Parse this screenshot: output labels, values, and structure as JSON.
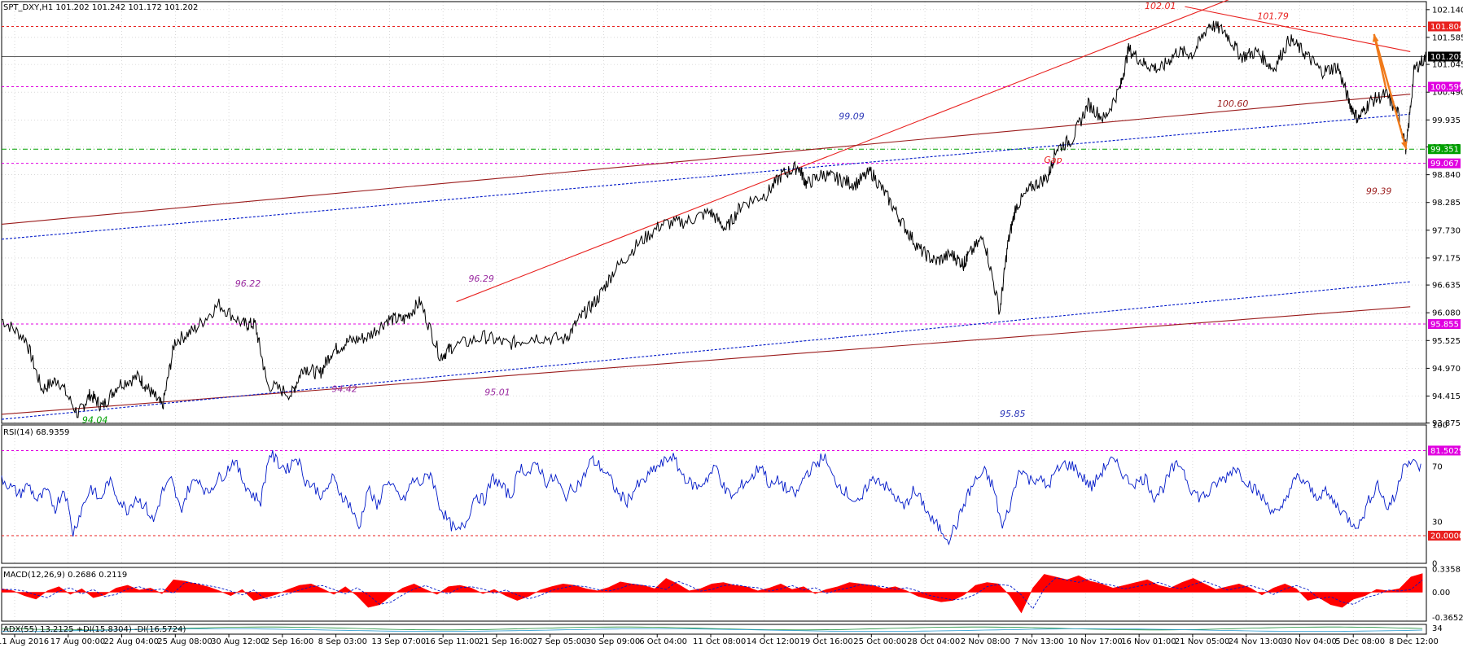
{
  "colors": {
    "price": "#000000",
    "trend_red": "#e8211f",
    "trend_darkred": "#9b1c1c",
    "trend_blue": "#0018c8",
    "level_red": "#e8211f",
    "level_magenta": "#e000e0",
    "level_green": "#00a000",
    "rsi_line": "#0018c8",
    "macd_hist": "#ff0000",
    "macd_signal": "#0018c8",
    "arrow": "#f07a1a",
    "grid": "#c0c0c0",
    "annotation_purple": "#9a2aa0",
    "annotation_red": "#e8211f",
    "annotation_blue": "#2b36b8"
  },
  "chart_data": {
    "type": "line",
    "symbol": "SPT_DXY,H1",
    "ohlc_header": "SPT_DXY,H1  101.202 101.242 101.172 101.202",
    "main_panel": {
      "ylim": [
        93.87,
        102.3
      ],
      "y_ticks": [
        "102.140",
        "101.585",
        "101.045",
        "100.490",
        "99.935",
        "99.395",
        "98.840",
        "98.285",
        "97.730",
        "97.175",
        "96.635",
        "96.080",
        "95.525",
        "94.970",
        "94.415",
        "93.875"
      ],
      "price_points": [
        [
          0,
          95.95
        ],
        [
          0.03,
          95.55
        ],
        [
          0.05,
          94.55
        ],
        [
          0.07,
          94.75
        ],
        [
          0.095,
          94.05
        ],
        [
          0.11,
          94.45
        ],
        [
          0.125,
          94.2
        ],
        [
          0.145,
          94.65
        ],
        [
          0.17,
          94.8
        ],
        [
          0.185,
          94.5
        ],
        [
          0.2,
          94.2
        ],
        [
          0.215,
          95.5
        ],
        [
          0.24,
          95.75
        ],
        [
          0.27,
          96.25
        ],
        [
          0.3,
          95.85
        ],
        [
          0.315,
          95.85
        ],
        [
          0.33,
          94.65
        ],
        [
          0.36,
          94.45
        ],
        [
          0.375,
          95.0
        ],
        [
          0.395,
          94.85
        ],
        [
          0.41,
          95.3
        ],
        [
          0.43,
          95.5
        ],
        [
          0.455,
          95.6
        ],
        [
          0.48,
          95.95
        ],
        [
          0.5,
          95.95
        ],
        [
          0.52,
          96.3
        ],
        [
          0.545,
          95.2
        ],
        [
          0.56,
          95.4
        ],
        [
          0.6,
          95.6
        ],
        [
          0.63,
          95.45
        ],
        [
          0.66,
          95.6
        ],
        [
          0.7,
          95.55
        ],
        [
          0.72,
          96.0
        ],
        [
          0.74,
          96.35
        ],
        [
          0.76,
          96.9
        ],
        [
          0.79,
          97.45
        ],
        [
          0.82,
          97.85
        ],
        [
          0.85,
          97.9
        ],
        [
          0.88,
          98.1
        ],
        [
          0.9,
          97.75
        ],
        [
          0.92,
          98.25
        ],
        [
          0.95,
          98.45
        ],
        [
          0.97,
          98.85
        ],
        [
          0.99,
          99.0
        ],
        [
          1.0,
          98.65
        ],
        [
          1.02,
          98.85
        ],
        [
          1.04,
          98.75
        ],
        [
          1.06,
          98.65
        ],
        [
          1.08,
          98.9
        ],
        [
          1.1,
          98.4
        ],
        [
          1.12,
          97.85
        ],
        [
          1.14,
          97.35
        ],
        [
          1.16,
          97.1
        ],
        [
          1.18,
          97.25
        ],
        [
          1.195,
          97.05
        ],
        [
          1.2,
          97.2
        ],
        [
          1.22,
          97.6
        ],
        [
          1.24,
          96.1
        ],
        [
          1.25,
          97.45
        ],
        [
          1.26,
          98.2
        ],
        [
          1.28,
          98.6
        ],
        [
          1.3,
          98.8
        ],
        [
          1.31,
          99.35
        ],
        [
          1.33,
          99.55
        ],
        [
          1.35,
          100.25
        ],
        [
          1.37,
          99.95
        ],
        [
          1.39,
          100.6
        ],
        [
          1.4,
          101.35
        ],
        [
          1.42,
          101.05
        ],
        [
          1.44,
          100.95
        ],
        [
          1.46,
          101.3
        ],
        [
          1.48,
          101.25
        ],
        [
          1.5,
          101.85
        ],
        [
          1.52,
          101.7
        ],
        [
          1.54,
          101.2
        ],
        [
          1.56,
          101.3
        ],
        [
          1.58,
          100.95
        ],
        [
          1.6,
          101.55
        ],
        [
          1.62,
          101.25
        ],
        [
          1.64,
          100.9
        ],
        [
          1.66,
          101.0
        ],
        [
          1.675,
          100.25
        ],
        [
          1.685,
          99.95
        ],
        [
          1.7,
          100.3
        ],
        [
          1.72,
          100.45
        ],
        [
          1.735,
          100.05
        ],
        [
          1.745,
          99.35
        ],
        [
          1.755,
          100.95
        ],
        [
          1.77,
          101.2
        ]
      ],
      "horizontal_levels": [
        {
          "value": 101.804,
          "label": "101.804",
          "color": "level_red",
          "style": "dashed"
        },
        {
          "value": 101.202,
          "label": "101.202",
          "color": "price",
          "style": "solid"
        },
        {
          "value": 100.599,
          "label": "100.599",
          "color": "level_magenta",
          "style": "dashed"
        },
        {
          "value": 99.351,
          "label": "99.351",
          "color": "level_green",
          "style": "dashdot"
        },
        {
          "value": 99.067,
          "label": "99.067",
          "color": "level_magenta",
          "style": "dashed"
        },
        {
          "value": 95.855,
          "label": "95.855",
          "color": "level_magenta",
          "style": "dashed"
        }
      ],
      "annotations": [
        {
          "text": "102.01",
          "x": 1.42,
          "y": 102.15,
          "color": "annotation_red",
          "italic": false
        },
        {
          "text": "101.79",
          "x": 1.56,
          "y": 101.95,
          "color": "annotation_red",
          "italic": false
        },
        {
          "text": "100.60",
          "x": 1.51,
          "y": 100.2,
          "color": "trend_darkred",
          "italic": false
        },
        {
          "text": "99.09",
          "x": 1.04,
          "y": 99.95,
          "color": "annotation_blue",
          "italic": false
        },
        {
          "text": "Gap",
          "x": 1.295,
          "y": 99.08,
          "color": "annotation_red",
          "italic": true
        },
        {
          "text": "99.39",
          "x": 1.695,
          "y": 98.45,
          "color": "trend_darkred",
          "italic": false
        },
        {
          "text": "96.22",
          "x": 0.29,
          "y": 96.6,
          "color": "annotation_purple",
          "italic": true
        },
        {
          "text": "96.29",
          "x": 0.58,
          "y": 96.7,
          "color": "annotation_purple",
          "italic": true
        },
        {
          "text": "94.42",
          "x": 0.41,
          "y": 94.5,
          "color": "annotation_purple",
          "italic": true
        },
        {
          "text": "95.01",
          "x": 0.6,
          "y": 94.43,
          "color": "annotation_purple",
          "italic": true
        },
        {
          "text": "94.04",
          "x": 0.1,
          "y": 93.88,
          "color": "level_green",
          "italic": true
        },
        {
          "text": "95.85",
          "x": 1.24,
          "y": 94.0,
          "color": "annotation_blue",
          "italic": false
        }
      ],
      "trend_lines": [
        {
          "from": [
            0.565,
            96.3
          ],
          "to": [
            1.55,
            102.5
          ],
          "color": "trend_red",
          "style": "solid"
        },
        {
          "from": [
            1.47,
            102.2
          ],
          "to": [
            1.75,
            101.3
          ],
          "color": "trend_red",
          "style": "solid"
        },
        {
          "from": [
            0.0,
            97.85
          ],
          "to": [
            1.75,
            100.45
          ],
          "color": "trend_darkred",
          "style": "solid"
        },
        {
          "from": [
            0.0,
            94.05
          ],
          "to": [
            1.75,
            96.2
          ],
          "color": "trend_darkred",
          "style": "solid"
        },
        {
          "from": [
            0.0,
            97.55
          ],
          "to": [
            1.75,
            100.05
          ],
          "color": "trend_blue",
          "style": "dashed"
        },
        {
          "from": [
            0.0,
            93.95
          ],
          "to": [
            1.75,
            96.7
          ],
          "color": "trend_blue",
          "style": "dashed"
        }
      ],
      "arrows": [
        {
          "points": [
            [
              1.72,
              100.55
            ],
            [
              1.705,
              101.65
            ],
            [
              1.745,
              99.35
            ]
          ],
          "color": "arrow"
        }
      ]
    },
    "rsi_panel": {
      "label": "RSI(14) 68.9359",
      "ylim": [
        0,
        100
      ],
      "y_ticks": [
        "100",
        "70",
        "30",
        "0"
      ],
      "levels": [
        {
          "value": 81.5029,
          "label": "81.5029",
          "color": "level_magenta"
        },
        {
          "value": 20.0,
          "label": "20.0000",
          "color": "level_red"
        }
      ],
      "values": [
        62,
        55,
        50,
        57,
        45,
        52,
        40,
        55,
        22,
        40,
        55,
        45,
        60,
        48,
        38,
        48,
        42,
        30,
        52,
        60,
        38,
        55,
        62,
        50,
        60,
        65,
        75,
        60,
        50,
        45,
        80,
        72,
        68,
        78,
        60,
        55,
        48,
        62,
        50,
        42,
        25,
        55,
        40,
        60,
        52,
        45,
        60,
        58,
        66,
        42,
        30,
        22,
        30,
        50,
        45,
        62,
        55,
        48,
        70,
        65,
        72,
        58,
        62,
        48,
        55,
        60,
        75,
        70,
        62,
        50,
        45,
        55,
        60,
        68,
        72,
        78,
        66,
        58,
        55,
        62,
        70,
        52,
        48,
        58,
        62,
        72,
        55,
        60,
        52,
        50,
        65,
        70,
        78,
        62,
        55,
        48,
        42,
        58,
        62,
        55,
        48,
        40,
        52,
        45,
        32,
        25,
        18,
        30,
        48,
        60,
        66,
        55,
        25,
        45,
        70,
        60,
        62,
        55,
        66,
        72,
        70,
        62,
        55,
        65,
        75,
        70,
        60,
        58,
        62,
        48,
        55,
        68,
        72,
        55,
        48,
        50,
        58,
        62,
        70,
        62,
        55,
        48,
        40,
        35,
        52,
        62,
        58,
        48,
        52,
        45,
        38,
        30,
        28,
        45,
        58,
        40,
        48,
        75,
        72,
        69
      ]
    },
    "macd_panel": {
      "label": "MACD(12,26,9) 0.2686 0.2119",
      "ylim": [
        -0.42,
        0.36
      ],
      "y_ticks": [
        "0.3358",
        "0.00",
        "-0.3652"
      ],
      "histogram": [
        0.05,
        0.02,
        -0.05,
        -0.1,
        0.02,
        0.08,
        -0.03,
        0.05,
        -0.08,
        -0.04,
        0.06,
        0.1,
        0.03,
        0.06,
        -0.02,
        0.18,
        0.16,
        0.12,
        0.08,
        0.02,
        -0.05,
        0.04,
        -0.12,
        -0.08,
        -0.03,
        0.04,
        0.1,
        0.12,
        0.05,
        -0.03,
        0.08,
        -0.05,
        -0.22,
        -0.18,
        -0.05,
        0.06,
        0.12,
        0.04,
        -0.03,
        0.08,
        0.1,
        0.06,
        -0.02,
        0.04,
        -0.05,
        -0.12,
        -0.06,
        0.03,
        0.08,
        0.12,
        0.1,
        0.05,
        0.02,
        0.07,
        0.15,
        0.12,
        0.1,
        0.05,
        0.2,
        0.12,
        0.02,
        0.05,
        0.12,
        0.14,
        0.1,
        0.08,
        0.02,
        0.06,
        0.12,
        0.04,
        0.08,
        -0.02,
        0.04,
        0.08,
        0.14,
        0.12,
        0.1,
        0.05,
        0.08,
        0.02,
        -0.06,
        -0.1,
        -0.14,
        -0.12,
        -0.04,
        0.1,
        0.14,
        0.12,
        -0.05,
        -0.3,
        0.06,
        0.26,
        0.22,
        0.18,
        0.24,
        0.16,
        0.12,
        0.06,
        0.1,
        0.14,
        0.18,
        0.1,
        0.06,
        0.14,
        0.2,
        0.12,
        0.04,
        0.08,
        0.12,
        0.06,
        -0.04,
        0.06,
        0.12,
        0.05,
        -0.12,
        -0.08,
        -0.18,
        -0.22,
        -0.1,
        -0.05,
        0.04,
        0.02,
        0.05,
        0.22,
        0.27
      ],
      "signal_line": true
    },
    "adx_panel": {
      "label": "ADX(55) 13.2125 +DI(15.8304) -DI(16.5724)",
      "y_tick": "34"
    },
    "x_axis": {
      "labels": [
        "11 Aug 2016",
        "17 Aug 00:00",
        "22 Aug 04:00",
        "25 Aug 08:00",
        "30 Aug 12:00",
        "2 Sep 16:00",
        "8 Sep 03:00",
        "13 Sep 07:00",
        "16 Sep 11:00",
        "21 Sep 16:00",
        "27 Sep 05:00",
        "30 Sep 09:00",
        "6 Oct 04:00",
        "11 Oct 08:00",
        "14 Oct 12:00",
        "19 Oct 16:00",
        "25 Oct 00:00",
        "28 Oct 04:00",
        "2 Nov 08:00",
        "7 Nov 13:00",
        "10 Nov 17:00",
        "16 Nov 01:00",
        "21 Nov 05:00",
        "24 Nov 13:00",
        "30 Nov 04:00",
        "5 Dec 08:00",
        "8 Dec 12:00"
      ]
    }
  }
}
